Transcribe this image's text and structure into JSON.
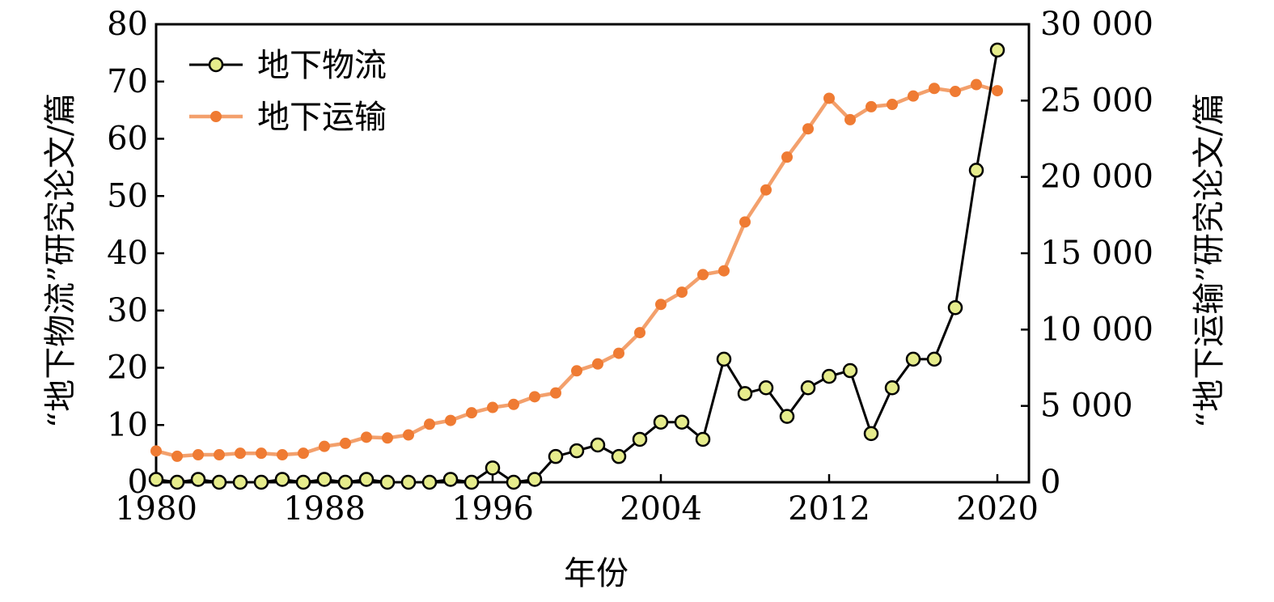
{
  "chart_data": {
    "type": "line",
    "title": "",
    "xlabel": "年份",
    "ylabel_left": "“地下物流”研究论文/篇",
    "ylabel_right": "“地下运输”研究论文/篇",
    "xlim": [
      1980,
      2021.5
    ],
    "ylim_left": [
      0,
      80
    ],
    "ylim_right": [
      0,
      30000
    ],
    "x_ticks": [
      1980,
      1988,
      1996,
      2004,
      2012,
      2020
    ],
    "x_tick_labels": [
      "1980",
      "1988",
      "1996",
      "2004",
      "2012",
      "2020"
    ],
    "y_left_ticks": [
      0,
      10,
      20,
      30,
      40,
      50,
      60,
      70,
      80
    ],
    "y_left_tick_labels": [
      "0",
      "10",
      "20",
      "30",
      "40",
      "50",
      "60",
      "70",
      "80"
    ],
    "y_right_ticks": [
      0,
      5000,
      10000,
      15000,
      20000,
      25000,
      30000
    ],
    "y_right_tick_labels": [
      "0",
      "5 000",
      "10 000",
      "15 000",
      "20 000",
      "25 000",
      "30 000"
    ],
    "legend_position": "top-left",
    "grid": false,
    "x": [
      1980,
      1981,
      1982,
      1983,
      1984,
      1985,
      1986,
      1987,
      1988,
      1989,
      1990,
      1991,
      1992,
      1993,
      1994,
      1995,
      1996,
      1997,
      1998,
      1999,
      2000,
      2001,
      2002,
      2003,
      2004,
      2005,
      2006,
      2007,
      2008,
      2009,
      2010,
      2011,
      2012,
      2013,
      2014,
      2015,
      2016,
      2017,
      2018,
      2019,
      2020
    ],
    "series": [
      {
        "name": "地下物流",
        "axis": "left",
        "line_color": "#000000",
        "marker_color": "#e6ec8c",
        "marker_edge": "#000000",
        "values": [
          0.5,
          0,
          0.5,
          0,
          0,
          0,
          0.5,
          0,
          0.5,
          0,
          0.5,
          0,
          0,
          0,
          0.5,
          0,
          2.5,
          0,
          0.5,
          4.5,
          5.5,
          6.5,
          4.5,
          7.5,
          10.5,
          10.5,
          7.5,
          21.5,
          15.5,
          16.5,
          11.5,
          16.5,
          18.5,
          19.5,
          8.5,
          16.5,
          21.5,
          21.5,
          30.5,
          54.5,
          75.5
        ]
      },
      {
        "name": "地下运输",
        "axis": "right",
        "line_color": "#f3a06c",
        "marker_color": "#ef7b33",
        "marker_edge": "#ef7b33",
        "values": [
          2050,
          1700,
          1800,
          1800,
          1900,
          1900,
          1800,
          1900,
          2350,
          2550,
          2950,
          2900,
          3100,
          3800,
          4050,
          4550,
          4900,
          5100,
          5600,
          5850,
          7300,
          7750,
          8450,
          9800,
          11650,
          12450,
          13600,
          13850,
          17050,
          19150,
          21300,
          23150,
          25150,
          23750,
          24600,
          24750,
          25300,
          25800,
          25600,
          26050,
          25650
        ]
      }
    ]
  }
}
